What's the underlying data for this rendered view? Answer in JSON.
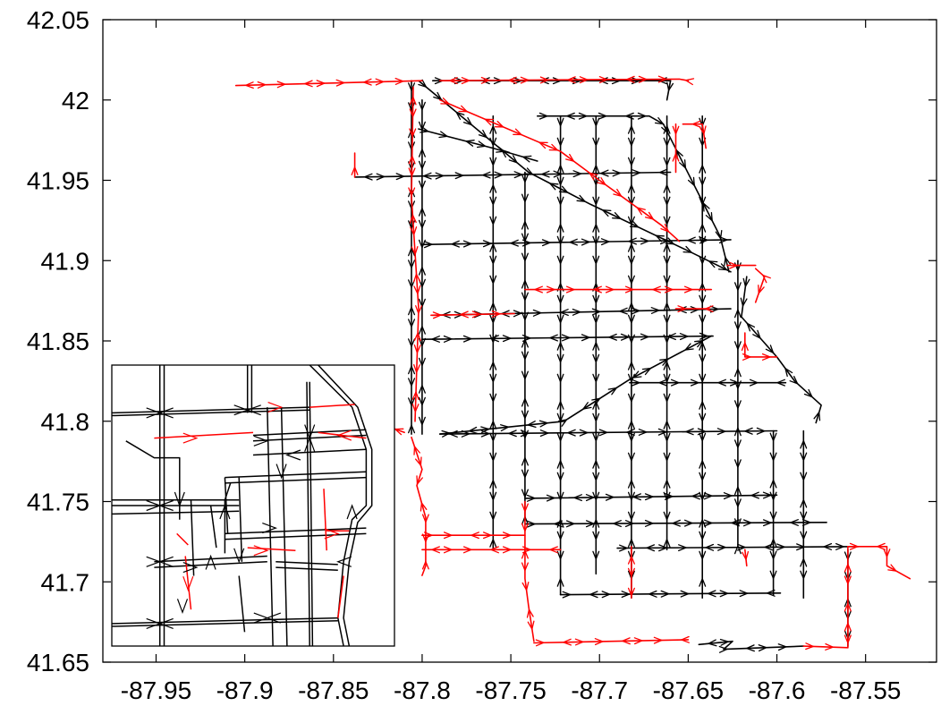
{
  "chart_data": {
    "type": "line",
    "title": "",
    "xlabel": "",
    "ylabel": "",
    "xlim": [
      -87.98,
      -87.51
    ],
    "ylim": [
      41.65,
      42.05
    ],
    "grid": false,
    "x_ticks": [
      "-87.95",
      "-87.9",
      "-87.85",
      "-87.8",
      "-87.75",
      "-87.7",
      "-87.65",
      "-87.6",
      "-87.55"
    ],
    "x_tick_values": [
      -87.95,
      -87.9,
      -87.85,
      -87.8,
      -87.75,
      -87.7,
      -87.65,
      -87.6,
      -87.55
    ],
    "y_ticks": [
      "41.65",
      "41.7",
      "41.75",
      "41.8",
      "41.85",
      "41.9",
      "41.95",
      "42",
      "42.05"
    ],
    "y_tick_values": [
      41.65,
      41.7,
      41.75,
      41.8,
      41.85,
      41.9,
      41.95,
      42.0,
      42.05
    ],
    "colors": {
      "black_series": "#000000",
      "red_series": "#ff0000"
    },
    "series": [
      {
        "color": "black",
        "segments": [
          [
            [
              -87.794,
              42.012
            ],
            [
              -87.66,
              42.012
            ]
          ],
          [
            [
              -87.66,
              42.012
            ],
            [
              -87.662,
              42.0
            ]
          ],
          [
            [
              -87.735,
              41.99
            ],
            [
              -87.672,
              41.99
            ],
            [
              -87.664,
              41.985
            ]
          ],
          [
            [
              -87.838,
              41.952
            ],
            [
              -87.66,
              41.955
            ]
          ],
          [
            [
              -87.802,
              41.982
            ],
            [
              -87.76,
              41.97
            ],
            [
              -87.735,
              41.962
            ]
          ],
          [
            [
              -87.802,
              42.012
            ],
            [
              -87.74,
              41.955
            ],
            [
              -87.705,
              41.935
            ],
            [
              -87.648,
              41.905
            ],
            [
              -87.626,
              41.893
            ]
          ],
          [
            [
              -87.8,
              41.91
            ],
            [
              -87.626,
              41.913
            ]
          ],
          [
            [
              -87.794,
              41.866
            ],
            [
              -87.626,
              41.87
            ]
          ],
          [
            [
              -87.8,
              41.851
            ],
            [
              -87.636,
              41.853
            ]
          ],
          [
            [
              -87.79,
              41.792
            ],
            [
              -87.6,
              41.794
            ]
          ],
          [
            [
              -87.79,
              41.792
            ],
            [
              -87.72,
              41.8
            ],
            [
              -87.683,
              41.826
            ],
            [
              -87.637,
              41.853
            ]
          ],
          [
            [
              -87.683,
              41.824
            ],
            [
              -87.595,
              41.824
            ]
          ],
          [
            [
              -87.742,
              41.752
            ],
            [
              -87.6,
              41.754
            ]
          ],
          [
            [
              -87.742,
              41.736
            ],
            [
              -87.572,
              41.737
            ]
          ],
          [
            [
              -87.69,
              41.721
            ],
            [
              -87.554,
              41.722
            ]
          ],
          [
            [
              -87.722,
              41.692
            ],
            [
              -87.598,
              41.693
            ]
          ],
          [
            [
              -87.806,
              42.012
            ],
            [
              -87.806,
              41.792
            ]
          ],
          [
            [
              -87.8,
              42.0
            ],
            [
              -87.8,
              41.792
            ]
          ],
          [
            [
              -87.76,
              41.99
            ],
            [
              -87.76,
              41.72
            ]
          ],
          [
            [
              -87.742,
              41.955
            ],
            [
              -87.742,
              41.738
            ]
          ],
          [
            [
              -87.722,
              41.99
            ],
            [
              -87.722,
              41.692
            ]
          ],
          [
            [
              -87.702,
              41.99
            ],
            [
              -87.702,
              41.705
            ]
          ],
          [
            [
              -87.682,
              41.99
            ],
            [
              -87.682,
              41.69
            ]
          ],
          [
            [
              -87.662,
              41.99
            ],
            [
              -87.662,
              41.72
            ]
          ],
          [
            [
              -87.642,
              41.99
            ],
            [
              -87.642,
              41.69
            ]
          ],
          [
            [
              -87.622,
              41.9
            ],
            [
              -87.622,
              41.722
            ]
          ],
          [
            [
              -87.602,
              41.794
            ],
            [
              -87.602,
              41.692
            ]
          ],
          [
            [
              -87.585,
              41.794
            ],
            [
              -87.585,
              41.69
            ]
          ],
          [
            [
              -87.664,
              41.985
            ],
            [
              -87.648,
              41.95
            ],
            [
              -87.632,
              41.915
            ],
            [
              -87.627,
              41.893
            ]
          ],
          [
            [
              -87.617,
              41.89
            ],
            [
              -87.62,
              41.865
            ],
            [
              -87.608,
              41.85
            ],
            [
              -87.6,
              41.84
            ],
            [
              -87.59,
              41.825
            ],
            [
              -87.575,
              41.81
            ],
            [
              -87.578,
              41.799
            ]
          ],
          [
            [
              -87.56,
              41.72
            ],
            [
              -87.56,
              41.66
            ]
          ],
          [
            [
              -87.644,
              41.661
            ],
            [
              -87.625,
              41.663
            ],
            [
              -87.63,
              41.658
            ],
            [
              -87.585,
              41.66
            ]
          ]
        ]
      },
      {
        "color": "red",
        "segments": [
          [
            [
              -87.905,
              42.009
            ],
            [
              -87.8,
              42.012
            ]
          ],
          [
            [
              -87.79,
              42.012
            ],
            [
              -87.655,
              42.013
            ],
            [
              -87.65,
              42.012
            ]
          ],
          [
            [
              -87.79,
              42.0
            ],
            [
              -87.722,
              41.968
            ],
            [
              -87.7,
              41.95
            ],
            [
              -87.665,
              41.922
            ],
            [
              -87.655,
              41.912
            ]
          ],
          [
            [
              -87.653,
              41.985
            ],
            [
              -87.642,
              41.985
            ],
            [
              -87.64,
              41.97
            ]
          ],
          [
            [
              -87.657,
              41.985
            ],
            [
              -87.657,
              41.955
            ]
          ],
          [
            [
              -87.838,
              41.952
            ],
            [
              -87.838,
              41.967
            ]
          ],
          [
            [
              -87.795,
              41.866
            ],
            [
              -87.748,
              41.867
            ]
          ],
          [
            [
              -87.742,
              41.882
            ],
            [
              -87.637,
              41.882
            ]
          ],
          [
            [
              -87.805,
              42.008
            ],
            [
              -87.806,
              41.94
            ],
            [
              -87.802,
              41.87
            ],
            [
              -87.804,
              41.8
            ]
          ],
          [
            [
              -87.81,
              41.793
            ],
            [
              -87.82,
              41.797
            ]
          ],
          [
            [
              -87.806,
              41.79
            ],
            [
              -87.8,
              41.77
            ],
            [
              -87.803,
              41.76
            ],
            [
              -87.798,
              41.74
            ],
            [
              -87.798,
              41.71
            ],
            [
              -87.8,
              41.704
            ]
          ],
          [
            [
              -87.8,
              41.729
            ],
            [
              -87.742,
              41.729
            ]
          ],
          [
            [
              -87.8,
              41.72
            ],
            [
              -87.722,
              41.72
            ]
          ],
          [
            [
              -87.742,
              41.75
            ],
            [
              -87.742,
              41.702
            ],
            [
              -87.74,
              41.685
            ],
            [
              -87.737,
              41.663
            ]
          ],
          [
            [
              -87.737,
              41.662
            ],
            [
              -87.65,
              41.664
            ]
          ],
          [
            [
              -87.585,
              41.66
            ],
            [
              -87.56,
              41.659
            ],
            [
              -87.56,
              41.722
            ]
          ],
          [
            [
              -87.56,
              41.722
            ],
            [
              -87.538,
              41.722
            ],
            [
              -87.538,
              41.71
            ],
            [
              -87.525,
              41.702
            ]
          ],
          [
            [
              -87.682,
              41.722
            ],
            [
              -87.682,
              41.69
            ]
          ],
          [
            [
              -87.618,
              41.855
            ],
            [
              -87.618,
              41.84
            ],
            [
              -87.6,
              41.84
            ]
          ],
          [
            [
              -87.612,
              41.895
            ],
            [
              -87.607,
              41.89
            ],
            [
              -87.612,
              41.874
            ]
          ],
          [
            [
              -87.657,
              41.87
            ],
            [
              -87.638,
              41.87
            ]
          ],
          [
            [
              -87.628,
              41.897
            ],
            [
              -87.612,
              41.897
            ]
          ],
          [
            [
              -87.618,
              41.72
            ],
            [
              -87.617,
              41.71
            ]
          ]
        ]
      }
    ]
  }
}
